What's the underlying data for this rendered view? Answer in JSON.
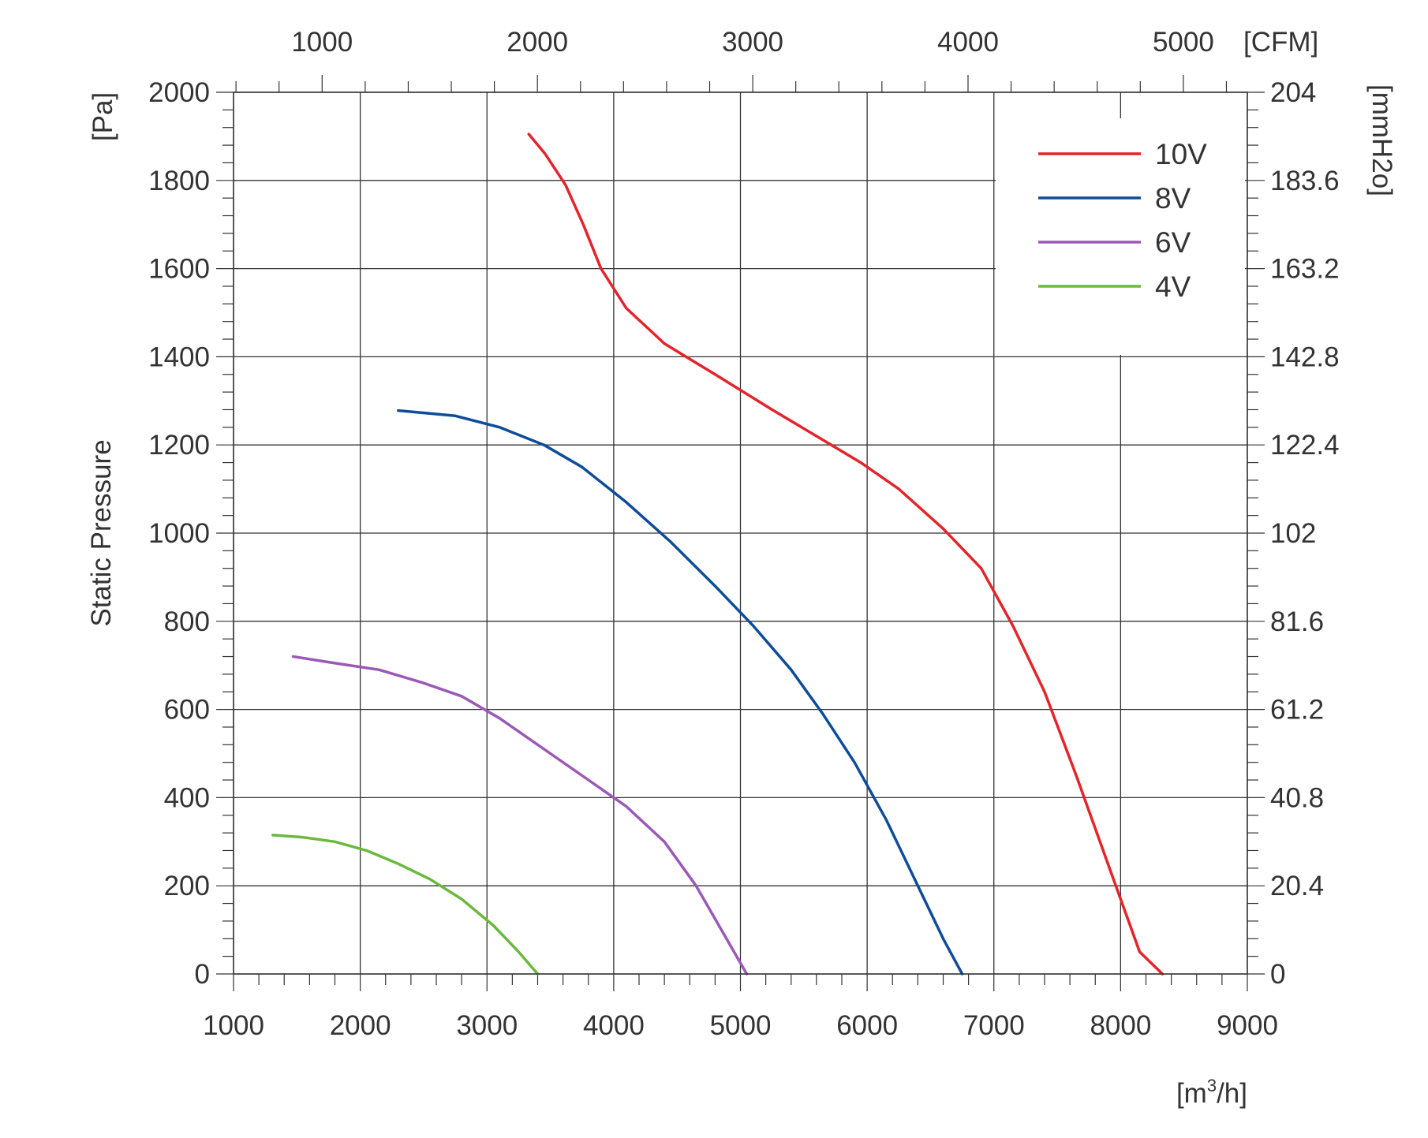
{
  "chart_data": {
    "type": "line",
    "title": "",
    "xlabel": "[m³/h]",
    "xlabel_base": "[m",
    "xlabel_sup": "3",
    "xlabel_tail": "/h]",
    "ylabel": "Static Pressure",
    "ylabel_unit": "[Pa]",
    "secondary_x_unit": "[CFM]",
    "secondary_y_unit": "[mmH2o]",
    "xlim": [
      1000,
      9000
    ],
    "ylim": [
      0,
      2000
    ],
    "x_ticks": [
      1000,
      2000,
      3000,
      4000,
      5000,
      6000,
      7000,
      8000,
      9000
    ],
    "y_ticks": [
      0,
      200,
      400,
      600,
      800,
      1000,
      1200,
      1400,
      1600,
      1800,
      2000
    ],
    "cfm_ticks": [
      1000,
      2000,
      3000,
      4000,
      5000
    ],
    "mmh2o_ticks": [
      "0",
      "20.4",
      "40.8",
      "61.2",
      "81.6",
      "102",
      "122.4",
      "142.8",
      "163.2",
      "183.6",
      "204"
    ],
    "grid": true,
    "legend_position": "top-right",
    "series": [
      {
        "name": "10V",
        "color": "#e3242b",
        "points": [
          [
            3330,
            1905
          ],
          [
            3460,
            1860
          ],
          [
            3620,
            1790
          ],
          [
            3760,
            1700
          ],
          [
            3900,
            1600
          ],
          [
            4100,
            1510
          ],
          [
            4400,
            1430
          ],
          [
            4800,
            1360
          ],
          [
            5250,
            1280
          ],
          [
            5600,
            1220
          ],
          [
            5950,
            1160
          ],
          [
            6250,
            1100
          ],
          [
            6600,
            1010
          ],
          [
            6900,
            920
          ],
          [
            7150,
            790
          ],
          [
            7400,
            640
          ],
          [
            7650,
            450
          ],
          [
            7900,
            250
          ],
          [
            8150,
            50
          ],
          [
            8330,
            0
          ]
        ]
      },
      {
        "name": "8V",
        "color": "#0e4c9a",
        "points": [
          [
            2300,
            1278
          ],
          [
            2750,
            1266
          ],
          [
            3100,
            1240
          ],
          [
            3450,
            1200
          ],
          [
            3750,
            1150
          ],
          [
            4100,
            1070
          ],
          [
            4450,
            980
          ],
          [
            4800,
            880
          ],
          [
            5100,
            790
          ],
          [
            5400,
            690
          ],
          [
            5650,
            590
          ],
          [
            5900,
            480
          ],
          [
            6150,
            350
          ],
          [
            6400,
            200
          ],
          [
            6600,
            80
          ],
          [
            6750,
            0
          ]
        ]
      },
      {
        "name": "6V",
        "color": "#9b59b6",
        "points": [
          [
            1470,
            720
          ],
          [
            1800,
            705
          ],
          [
            2150,
            690
          ],
          [
            2500,
            660
          ],
          [
            2800,
            630
          ],
          [
            3100,
            580
          ],
          [
            3400,
            520
          ],
          [
            3800,
            440
          ],
          [
            4100,
            380
          ],
          [
            4400,
            300
          ],
          [
            4650,
            200
          ],
          [
            4850,
            100
          ],
          [
            5050,
            0
          ]
        ]
      },
      {
        "name": "4V",
        "color": "#6ab93e",
        "points": [
          [
            1310,
            315
          ],
          [
            1550,
            310
          ],
          [
            1800,
            300
          ],
          [
            2050,
            280
          ],
          [
            2300,
            250
          ],
          [
            2550,
            215
          ],
          [
            2800,
            170
          ],
          [
            3050,
            110
          ],
          [
            3250,
            50
          ],
          [
            3400,
            0
          ]
        ]
      }
    ]
  }
}
